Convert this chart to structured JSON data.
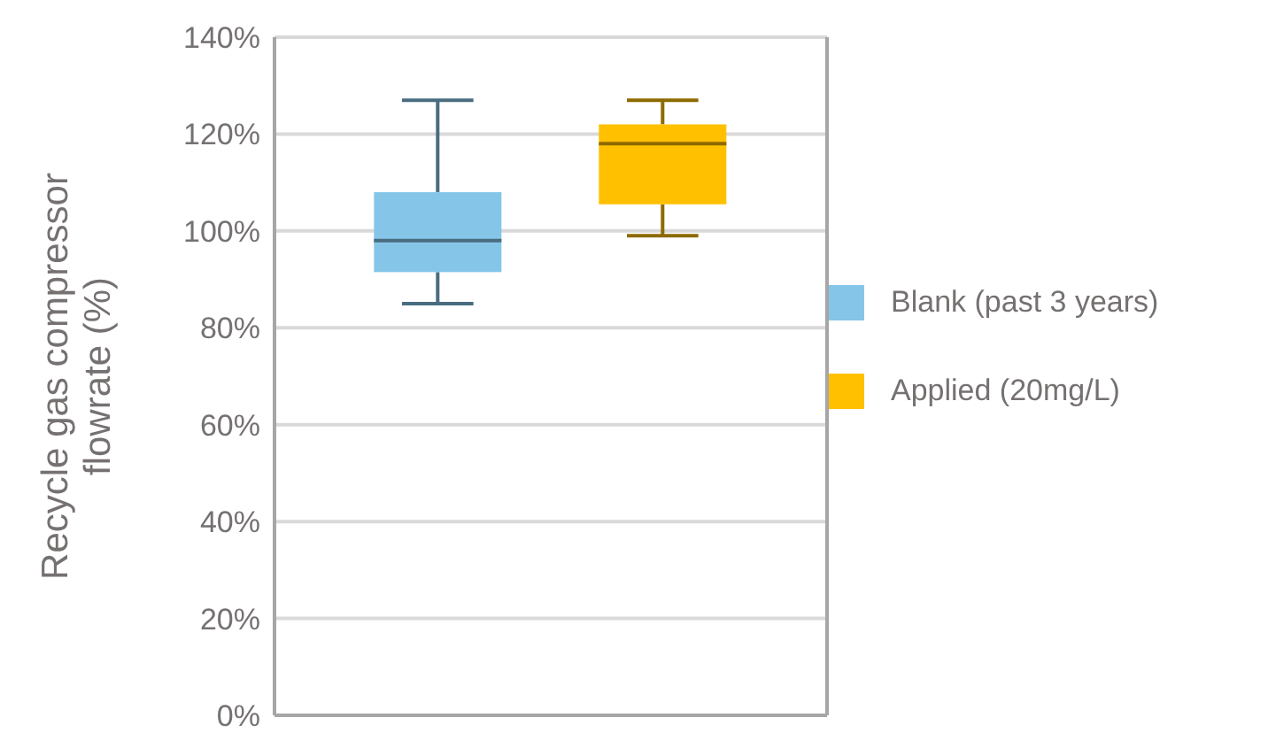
{
  "chart_data": {
    "type": "box",
    "ylabel": "Recycle gas compressor flowrate (%)",
    "categories": [
      null
    ],
    "ylim": [
      0,
      140
    ],
    "yticks": [
      {
        "value": 0,
        "label": "0%"
      },
      {
        "value": 20,
        "label": "20%"
      },
      {
        "value": 40,
        "label": "40%"
      },
      {
        "value": 60,
        "label": "60%"
      },
      {
        "value": 80,
        "label": "80%"
      },
      {
        "value": 100,
        "label": "100%"
      },
      {
        "value": 120,
        "label": "120%"
      },
      {
        "value": 140,
        "label": "140%"
      }
    ],
    "grid": "y",
    "legend": "right",
    "series": [
      {
        "name": "Blank (past 3 years)",
        "color": "#85c5e8",
        "boxes": [
          {
            "low": 85,
            "q1": 91.5,
            "median": 98,
            "q3": 108,
            "high": 127
          }
        ]
      },
      {
        "name": "Applied (20mg/L)",
        "color": "#ffc000",
        "boxes": [
          {
            "low": 99,
            "q1": 105.5,
            "median": 118,
            "q3": 122,
            "high": 127
          }
        ]
      }
    ]
  }
}
